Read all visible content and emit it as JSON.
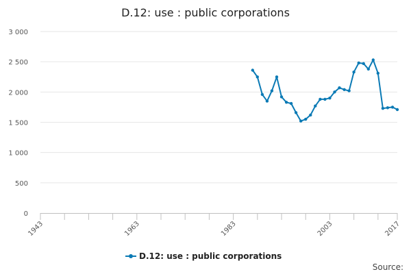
{
  "chart_data": {
    "type": "line",
    "title": "D.12: use : public corporations",
    "xlabel": "",
    "ylabel": "",
    "xlim": [
      1943,
      2017
    ],
    "ylim": [
      0,
      3000
    ],
    "x_ticks": [
      1943,
      1948,
      1953,
      1958,
      1963,
      1968,
      1973,
      1978,
      1983,
      1988,
      1993,
      1998,
      2003,
      2008,
      2013,
      2017
    ],
    "x_tick_labels": [
      "1943",
      "",
      "",
      "",
      "1963",
      "",
      "",
      "",
      "1983",
      "",
      "",
      "",
      "2003",
      "",
      "",
      "2017"
    ],
    "y_ticks": [
      0,
      500,
      1000,
      1500,
      2000,
      2500,
      3000
    ],
    "y_tick_labels": [
      "0",
      "500",
      "1 000",
      "1 500",
      "2 000",
      "2 500",
      "3 000"
    ],
    "grid": "horizontal",
    "legend_position": "bottom",
    "series": [
      {
        "name": "D.12: use : public corporations",
        "color": "#0b7ab5",
        "x": [
          1987,
          1988,
          1989,
          1990,
          1991,
          1992,
          1993,
          1994,
          1995,
          1996,
          1997,
          1998,
          1999,
          2000,
          2001,
          2002,
          2003,
          2004,
          2005,
          2006,
          2007,
          2008,
          2009,
          2010,
          2011,
          2012,
          2013,
          2014,
          2015,
          2016,
          2017
        ],
        "values": [
          2360,
          2250,
          1960,
          1850,
          2020,
          2250,
          1920,
          1830,
          1810,
          1660,
          1520,
          1550,
          1620,
          1770,
          1880,
          1880,
          1900,
          2000,
          2070,
          2040,
          2020,
          2330,
          2480,
          2470,
          2380,
          2530,
          2310,
          1730,
          1740,
          1750,
          1710
        ]
      }
    ]
  },
  "legend": {
    "label": "D.12: use : public corporations"
  },
  "footer": {
    "source": "Source:"
  }
}
